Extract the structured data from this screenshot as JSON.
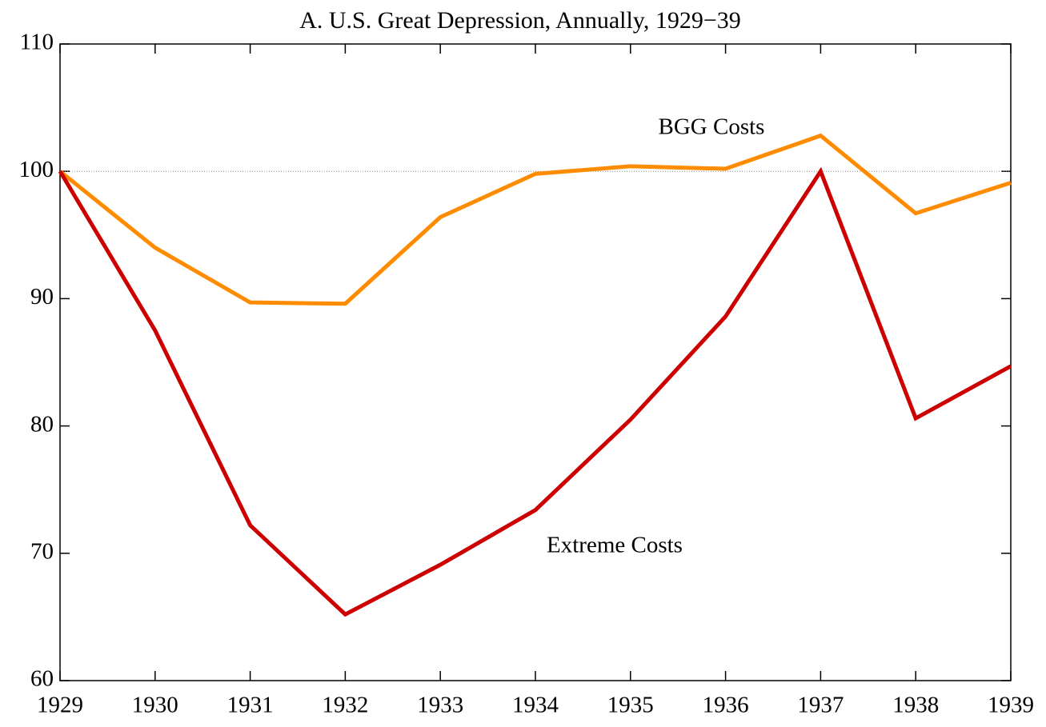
{
  "chart_data": {
    "type": "line",
    "title": "A. U.S. Great Depression, Annually, 1929−39",
    "x": [
      1929,
      1930,
      1931,
      1932,
      1933,
      1934,
      1935,
      1936,
      1937,
      1938,
      1939
    ],
    "series": [
      {
        "name": "BGG Costs",
        "color": "#ff8c00",
        "values": [
          100,
          94.0,
          89.7,
          89.6,
          96.4,
          99.8,
          100.4,
          100.2,
          102.8,
          96.7,
          99.1
        ]
      },
      {
        "name": "Extreme Costs",
        "color": "#cc0000",
        "values": [
          100,
          87.5,
          72.2,
          65.2,
          69.1,
          73.4,
          80.5,
          88.6,
          100,
          80.6,
          84.7
        ]
      }
    ],
    "xlim": [
      1929,
      1939
    ],
    "xticks": [
      1929,
      1930,
      1931,
      1932,
      1933,
      1934,
      1935,
      1936,
      1937,
      1938,
      1939
    ],
    "ylim": [
      60,
      110
    ],
    "yticks": [
      60,
      70,
      80,
      90,
      100,
      110
    ],
    "reference_line": 100
  }
}
